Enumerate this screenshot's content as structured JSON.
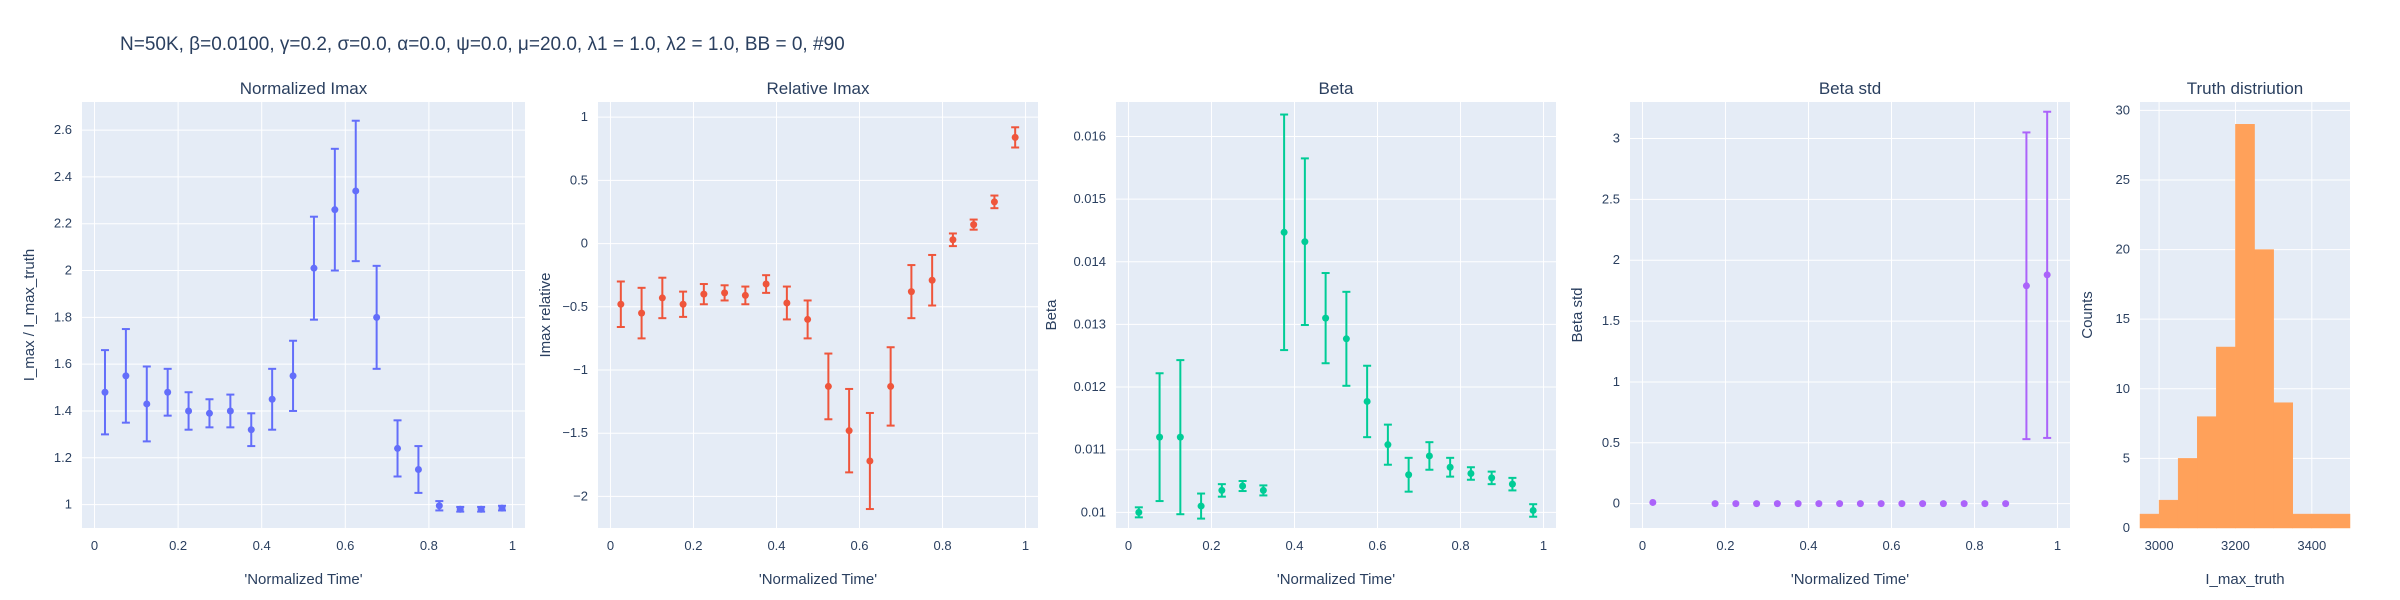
{
  "figure_title": "N=50K, β=0.0100, γ=0.2, σ=0.0,  α=0.0, ψ=0.0, μ=20.0, λ1 = 1.0, λ2 = 1.0, BB = 0, #90",
  "chart_data": [
    {
      "type": "scatter",
      "title": "Normalized Imax",
      "xlabel": "'Normalized Time'",
      "ylabel": "I_max / I_max_truth",
      "color": "#636efa",
      "xlim": [
        -0.03,
        1.03
      ],
      "ylim": [
        0.9,
        2.72
      ],
      "xticks": [
        0,
        0.2,
        0.4,
        0.6,
        0.8,
        1
      ],
      "xtick_labels": [
        "0",
        "0.2",
        "0.4",
        "0.6",
        "0.8",
        "1"
      ],
      "yticks": [
        1,
        1.2,
        1.4,
        1.6,
        1.8,
        2,
        2.2,
        2.4,
        2.6
      ],
      "ytick_labels": [
        "1",
        "1.2",
        "1.4",
        "1.6",
        "1.8",
        "2",
        "2.2",
        "2.4",
        "2.6"
      ],
      "x": [
        0.025,
        0.075,
        0.125,
        0.175,
        0.225,
        0.275,
        0.325,
        0.375,
        0.425,
        0.475,
        0.525,
        0.575,
        0.625,
        0.675,
        0.725,
        0.775,
        0.825,
        0.875,
        0.925,
        0.975
      ],
      "y": [
        1.48,
        1.55,
        1.43,
        1.48,
        1.4,
        1.39,
        1.4,
        1.32,
        1.45,
        1.55,
        2.01,
        2.26,
        2.34,
        1.8,
        1.24,
        1.15,
        0.995,
        0.98,
        0.98,
        0.985
      ],
      "err": [
        0.18,
        0.2,
        0.16,
        0.1,
        0.08,
        0.06,
        0.07,
        0.07,
        0.13,
        0.15,
        0.22,
        0.26,
        0.3,
        0.22,
        0.12,
        0.1,
        0.02,
        0.01,
        0.01,
        0.01
      ]
    },
    {
      "type": "scatter",
      "title": "Relative Imax",
      "xlabel": "'Normalized Time'",
      "ylabel": "Imax relative",
      "color": "#ef553b",
      "xlim": [
        -0.03,
        1.03
      ],
      "ylim": [
        -2.25,
        1.12
      ],
      "xticks": [
        0,
        0.2,
        0.4,
        0.6,
        0.8,
        1
      ],
      "xtick_labels": [
        "0",
        "0.2",
        "0.4",
        "0.6",
        "0.8",
        "1"
      ],
      "yticks": [
        -2,
        -1.5,
        -1,
        -0.5,
        0,
        0.5,
        1
      ],
      "ytick_labels": [
        "−2",
        "−1.5",
        "−1",
        "−0.5",
        "0",
        "0.5",
        "1"
      ],
      "x": [
        0.025,
        0.075,
        0.125,
        0.175,
        0.225,
        0.275,
        0.325,
        0.375,
        0.425,
        0.475,
        0.525,
        0.575,
        0.625,
        0.675,
        0.725,
        0.775,
        0.825,
        0.875,
        0.925,
        0.975
      ],
      "y": [
        -0.48,
        -0.55,
        -0.43,
        -0.48,
        -0.4,
        -0.39,
        -0.41,
        -0.32,
        -0.47,
        -0.6,
        -1.13,
        -1.48,
        -1.72,
        -1.13,
        -0.38,
        -0.29,
        0.03,
        0.15,
        0.33,
        0.84
      ],
      "err": [
        0.18,
        0.2,
        0.16,
        0.1,
        0.08,
        0.06,
        0.07,
        0.07,
        0.13,
        0.15,
        0.26,
        0.33,
        0.38,
        0.31,
        0.21,
        0.2,
        0.05,
        0.04,
        0.05,
        0.08
      ]
    },
    {
      "type": "scatter",
      "title": "Beta",
      "xlabel": "'Normalized Time'",
      "ylabel": "Beta",
      "color": "#00cc96",
      "xlim": [
        -0.03,
        1.03
      ],
      "ylim": [
        0.00975,
        0.01655
      ],
      "xticks": [
        0,
        0.2,
        0.4,
        0.6,
        0.8,
        1
      ],
      "xtick_labels": [
        "0",
        "0.2",
        "0.4",
        "0.6",
        "0.8",
        "1"
      ],
      "yticks": [
        0.01,
        0.011,
        0.012,
        0.013,
        0.014,
        0.015,
        0.016
      ],
      "ytick_labels": [
        "0.01",
        "0.011",
        "0.012",
        "0.013",
        "0.014",
        "0.015",
        "0.016"
      ],
      "x": [
        0.025,
        0.075,
        0.125,
        0.175,
        0.225,
        0.275,
        0.325,
        0.375,
        0.425,
        0.475,
        0.525,
        0.575,
        0.625,
        0.675,
        0.725,
        0.775,
        0.825,
        0.875,
        0.925,
        0.975
      ],
      "y": [
        0.01,
        0.0112,
        0.0112,
        0.0101,
        0.01035,
        0.01042,
        0.01035,
        0.01447,
        0.01432,
        0.0131,
        0.01277,
        0.01177,
        0.01108,
        0.0106,
        0.0109,
        0.01072,
        0.01062,
        0.01055,
        0.01045,
        0.01003
      ],
      "err": [
        8e-05,
        0.00102,
        0.00123,
        0.0002,
        0.0001,
        8e-05,
        8e-05,
        0.00188,
        0.00133,
        0.00072,
        0.00075,
        0.00057,
        0.00032,
        0.00027,
        0.00022,
        0.00015,
        0.0001,
        0.0001,
        0.0001,
        0.0001
      ]
    },
    {
      "type": "scatter",
      "title": "Beta std",
      "xlabel": "'Normalized Time'",
      "ylabel": "Beta std",
      "color": "#ab63fa",
      "xlim": [
        -0.03,
        1.03
      ],
      "ylim": [
        -0.2,
        3.3
      ],
      "xticks": [
        0,
        0.2,
        0.4,
        0.6,
        0.8,
        1
      ],
      "xtick_labels": [
        "0",
        "0.2",
        "0.4",
        "0.6",
        "0.8",
        "1"
      ],
      "yticks": [
        0,
        0.5,
        1,
        1.5,
        2,
        2.5,
        3
      ],
      "ytick_labels": [
        "0",
        "0.5",
        "1",
        "1.5",
        "2",
        "2.5",
        "3"
      ],
      "x": [
        0.025,
        0.175,
        0.225,
        0.275,
        0.325,
        0.375,
        0.425,
        0.475,
        0.525,
        0.575,
        0.625,
        0.675,
        0.725,
        0.775,
        0.825,
        0.875,
        0.925,
        0.975
      ],
      "y": [
        0.01,
        0.0,
        0.0,
        0.0,
        0.0,
        0.0,
        0.0,
        0.0,
        0.0,
        0.0,
        0.0,
        0.0,
        0.0,
        0.0,
        0.0,
        0.0,
        1.79,
        1.88
      ],
      "err": [
        0,
        0,
        0,
        0,
        0,
        0,
        0,
        0,
        0,
        0,
        0,
        0,
        0,
        0,
        0,
        0,
        1.26,
        1.34
      ]
    },
    {
      "type": "bar",
      "title": "Truth distriution",
      "xlabel": "I_max_truth",
      "ylabel": "Counts",
      "color": "#ffa15a",
      "xlim": [
        2950,
        3500
      ],
      "ylim": [
        0,
        30.6
      ],
      "xticks": [
        3000,
        3200,
        3400
      ],
      "xtick_labels": [
        "3000",
        "3200",
        "3400"
      ],
      "yticks": [
        0,
        5,
        10,
        15,
        20,
        25,
        30
      ],
      "ytick_labels": [
        "0",
        "5",
        "10",
        "15",
        "20",
        "25",
        "30"
      ],
      "bin_start": 2950,
      "bin_width": 50,
      "counts": [
        1,
        2,
        5,
        8,
        13,
        29,
        20,
        9,
        1,
        1,
        1
      ]
    }
  ]
}
